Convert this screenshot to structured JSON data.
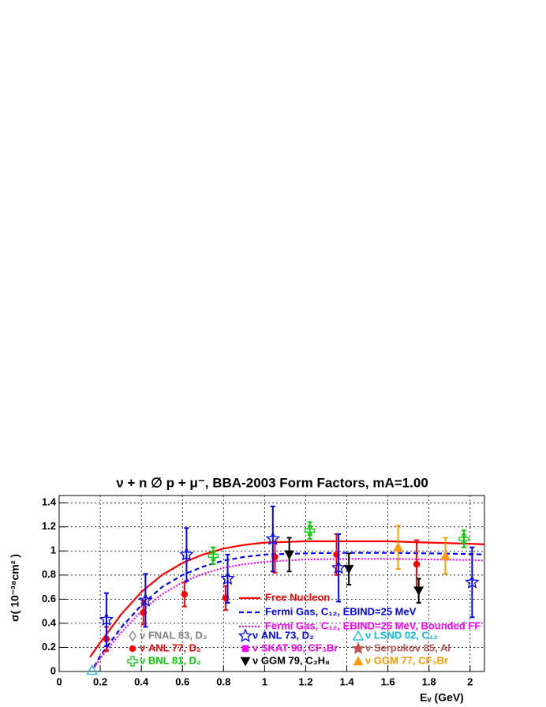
{
  "chart_data": {
    "type": "scatter",
    "title": "ν + n ∅ p + μ⁻, BBA-2003 Form Factors, mA=1.00",
    "x_label": "Eᵥ (GeV)",
    "y_label": "σ( 10⁻³⁸cm² )",
    "xlim": [
      0,
      2.07
    ],
    "ylim": [
      0,
      1.46
    ],
    "xticks": [
      0,
      0.2,
      0.4,
      0.6,
      0.8,
      1,
      1.2,
      1.4,
      1.6,
      1.8,
      2
    ],
    "yticks": [
      0,
      0.2,
      0.4,
      0.6,
      0.8,
      1,
      1.2,
      1.4
    ],
    "grid": true,
    "series": [
      {
        "name": "Free Nucleon",
        "kind": "line",
        "dash": "solid",
        "color": "#ff0000",
        "x": [
          0.15,
          0.2,
          0.3,
          0.4,
          0.5,
          0.6,
          0.7,
          0.8,
          0.9,
          1.0,
          1.2,
          1.4,
          1.6,
          1.8,
          2.0,
          2.07
        ],
        "values": [
          0.12,
          0.24,
          0.47,
          0.66,
          0.8,
          0.9,
          0.97,
          1.02,
          1.05,
          1.07,
          1.08,
          1.08,
          1.08,
          1.07,
          1.06,
          1.055
        ]
      },
      {
        "name": "Fermi Gas, C₁₂, EBIND=25 MeV",
        "kind": "line",
        "dash": "dashed",
        "color": "#0000ff",
        "x": [
          0.17,
          0.2,
          0.3,
          0.4,
          0.5,
          0.6,
          0.7,
          0.8,
          0.9,
          1.0,
          1.2,
          1.4,
          1.6,
          1.8,
          2.0,
          2.07
        ],
        "values": [
          0.04,
          0.13,
          0.36,
          0.55,
          0.7,
          0.8,
          0.87,
          0.92,
          0.95,
          0.97,
          0.98,
          0.985,
          0.985,
          0.98,
          0.975,
          0.97
        ]
      },
      {
        "name": "Fermi Gas, C₁₂, EBIND=25 MeV, Bounded FF",
        "kind": "line",
        "dash": "dotted",
        "color": "#ff00ff",
        "x": [
          0.17,
          0.2,
          0.3,
          0.4,
          0.5,
          0.6,
          0.7,
          0.8,
          0.9,
          1.0,
          1.2,
          1.4,
          1.6,
          1.8,
          2.0,
          2.07
        ],
        "values": [
          0.03,
          0.11,
          0.32,
          0.5,
          0.64,
          0.74,
          0.81,
          0.86,
          0.89,
          0.91,
          0.93,
          0.935,
          0.935,
          0.93,
          0.925,
          0.92
        ]
      },
      {
        "name": "ν FNAL 83, D₂",
        "kind": "points",
        "marker": "diamond-open",
        "color": "#808080",
        "x": [],
        "values": [],
        "errors": []
      },
      {
        "name": "ν ANL 77, D₂",
        "kind": "points",
        "marker": "circle",
        "color": "#ff0000",
        "x": [
          0.23,
          0.41,
          0.61,
          0.81,
          1.05,
          1.35,
          1.74
        ],
        "values": [
          0.27,
          0.49,
          0.64,
          0.61,
          0.95,
          0.97,
          0.89
        ],
        "errors": [
          0.1,
          0.1,
          0.1,
          0.1,
          0.13,
          0.17,
          0.2
        ]
      },
      {
        "name": "ν BNL 81, D₂",
        "kind": "points",
        "marker": "cross-open",
        "color": "#00cc00",
        "x": [
          0.75,
          1.22,
          1.97
        ],
        "values": [
          0.96,
          1.17,
          1.1
        ],
        "errors": [
          0.07,
          0.07,
          0.07
        ]
      },
      {
        "name": "ν ANL 73, D₂",
        "kind": "points",
        "marker": "star-open",
        "color": "#0000ff",
        "x": [
          0.23,
          0.42,
          0.62,
          0.82,
          1.04,
          1.36,
          2.01
        ],
        "values": [
          0.43,
          0.59,
          0.97,
          0.77,
          1.1,
          0.86,
          0.74
        ],
        "errors": [
          0.22,
          0.22,
          0.22,
          0.2,
          0.27,
          0.28,
          0.29
        ]
      },
      {
        "name": "ν SKAT 90, CF₃Br",
        "kind": "points",
        "marker": "square",
        "color": "#ff00ff",
        "x": [],
        "values": [],
        "errors": []
      },
      {
        "name": "ν GGM 79, C₃H₈",
        "kind": "points",
        "marker": "triangle-down",
        "color": "#000000",
        "x": [
          1.12,
          1.41,
          1.75
        ],
        "values": [
          0.97,
          0.85,
          0.67
        ],
        "errors": [
          0.14,
          0.13,
          0.1
        ]
      },
      {
        "name": "ν LSND 02, C₁₂",
        "kind": "points",
        "marker": "triangle-open",
        "color": "#00bbdd",
        "x": [
          0.16
        ],
        "values": [
          0.01
        ],
        "errors": [
          0
        ]
      },
      {
        "name": "ν Serpukov 85, Al",
        "kind": "points",
        "marker": "star",
        "color": "#bb5555",
        "x": [],
        "values": [],
        "errors": []
      },
      {
        "name": "ν GGM 77, CF₃Br",
        "kind": "points",
        "marker": "triangle",
        "color": "#ff9900",
        "x": [
          1.65,
          1.88
        ],
        "values": [
          1.03,
          0.96
        ],
        "errors": [
          0.18,
          0.15
        ]
      }
    ]
  }
}
